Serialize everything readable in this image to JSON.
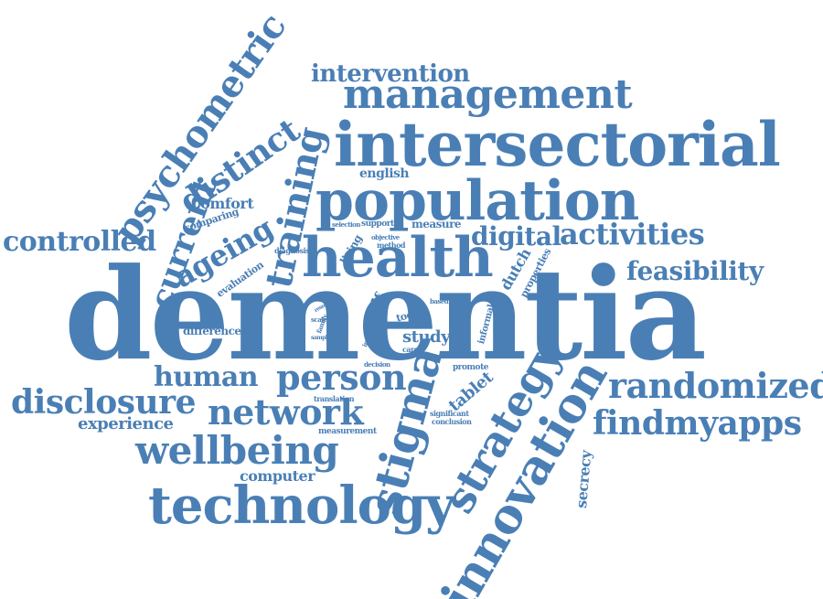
{
  "color": "#4a7fb5",
  "words": [
    {
      "text": "dementia"
    },
    {
      "text": "intersectorial"
    },
    {
      "text": "population"
    },
    {
      "text": "management"
    },
    {
      "text": "health"
    },
    {
      "text": "intervention"
    },
    {
      "text": "psychometric"
    },
    {
      "text": "distinct"
    },
    {
      "text": "training"
    },
    {
      "text": "current"
    },
    {
      "text": "ageing"
    },
    {
      "text": "controlled"
    },
    {
      "text": "comfort"
    },
    {
      "text": "comparing"
    },
    {
      "text": "english"
    },
    {
      "text": "digital"
    },
    {
      "text": "activities"
    },
    {
      "text": "feasibility"
    },
    {
      "text": "selection"
    },
    {
      "text": "support"
    },
    {
      "text": "measure"
    },
    {
      "text": "living"
    },
    {
      "text": "objective"
    },
    {
      "text": "method"
    },
    {
      "text": "dutch"
    },
    {
      "text": "properties"
    },
    {
      "text": "diagnosis"
    },
    {
      "text": "evaluation"
    },
    {
      "text": "self"
    },
    {
      "text": "tool"
    },
    {
      "text": "based"
    },
    {
      "text": "informal"
    },
    {
      "text": "difference"
    },
    {
      "text": "result"
    },
    {
      "text": "scale"
    },
    {
      "text": "family"
    },
    {
      "text": "sample"
    },
    {
      "text": "impact"
    },
    {
      "text": "care"
    },
    {
      "text": "study"
    },
    {
      "text": "carer"
    },
    {
      "text": "human"
    },
    {
      "text": "person"
    },
    {
      "text": "decision"
    },
    {
      "text": "promote"
    },
    {
      "text": "tablet"
    },
    {
      "text": "disclosure"
    },
    {
      "text": "network"
    },
    {
      "text": "translation"
    },
    {
      "text": "experience"
    },
    {
      "text": "stigma"
    },
    {
      "text": "significant"
    },
    {
      "text": "conclusion"
    },
    {
      "text": "measurement"
    },
    {
      "text": "randomized"
    },
    {
      "text": "findmyapps"
    },
    {
      "text": "wellbeing"
    },
    {
      "text": "strategy"
    },
    {
      "text": "computer"
    },
    {
      "text": "innovation"
    },
    {
      "text": "secrecy"
    },
    {
      "text": "technology"
    }
  ]
}
